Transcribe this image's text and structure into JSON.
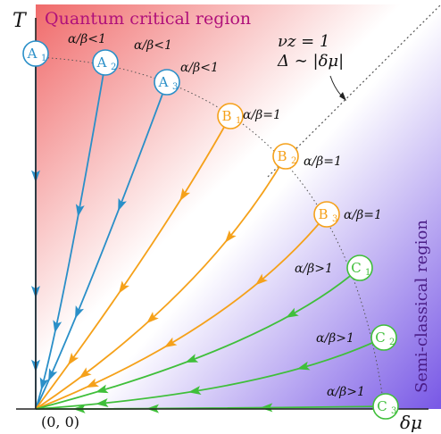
{
  "axes": {
    "y_label": "T",
    "x_label": "δμ",
    "origin_label": "(0, 0)"
  },
  "regions": {
    "quantum": "Quantum critical region",
    "semiclassical": "Semi-classical region"
  },
  "annotation": {
    "line1": "νz = 1",
    "line2": "Δ ∼ |δμ|"
  },
  "colors": {
    "A": "#2a8fc8",
    "B": "#f5a11a",
    "C": "#3fbf3a",
    "red_region": "#f27070",
    "purple_region": "#7a5ae6",
    "axis": "#222222"
  },
  "points": [
    {
      "id": "A",
      "sub": "1",
      "family": "A",
      "ratio": "α/β<1"
    },
    {
      "id": "A",
      "sub": "2",
      "family": "A",
      "ratio": "α/β<1"
    },
    {
      "id": "A",
      "sub": "3",
      "family": "A",
      "ratio": "α/β<1"
    },
    {
      "id": "B",
      "sub": "1",
      "family": "B",
      "ratio": "α/β=1"
    },
    {
      "id": "B",
      "sub": "2",
      "family": "B",
      "ratio": "α/β=1"
    },
    {
      "id": "B",
      "sub": "3",
      "family": "B",
      "ratio": "α/β=1"
    },
    {
      "id": "C",
      "sub": "1",
      "family": "C",
      "ratio": "α/β>1"
    },
    {
      "id": "C",
      "sub": "2",
      "family": "C",
      "ratio": "α/β>1"
    },
    {
      "id": "C",
      "sub": "3",
      "family": "C",
      "ratio": "α/β>1"
    }
  ]
}
